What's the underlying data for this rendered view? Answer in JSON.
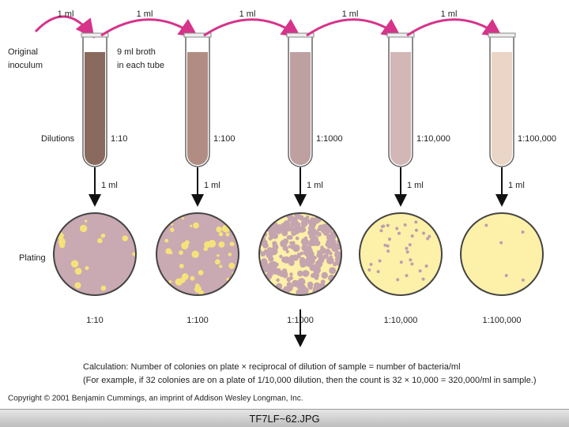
{
  "transfers": [
    "1 ml",
    "1 ml",
    "1 ml",
    "1 ml",
    "1 ml"
  ],
  "labels": {
    "original": [
      "Original",
      "inoculum"
    ],
    "broth": [
      "9 ml broth",
      "in each tube"
    ],
    "dilutions": "Dilutions",
    "plating": "Plating"
  },
  "tubes": [
    "1:10",
    "1:100",
    "1:1000",
    "1:10,000",
    "1:100,000"
  ],
  "plating_volumes": [
    "1 ml",
    "1 ml",
    "1 ml",
    "1 ml",
    "1 ml"
  ],
  "plates": [
    "1:10",
    "1:100",
    "1:1000",
    "1:10,000",
    "1:100,000"
  ],
  "calculation": [
    "Calculation: Number of colonies on plate × reciprocal of dilution of sample = number of bacteria/ml",
    "(For example, if 32 colonies are on a plate of 1/10,000 dilution, then the count is 32 × 10,000 = 320,000/ml in sample.)"
  ],
  "copyright": "Copyright © 2001 Benjamin Cummings, an imprint of Addison Wesley Longman, Inc.",
  "footer": "TF7LF~62.JPG"
}
